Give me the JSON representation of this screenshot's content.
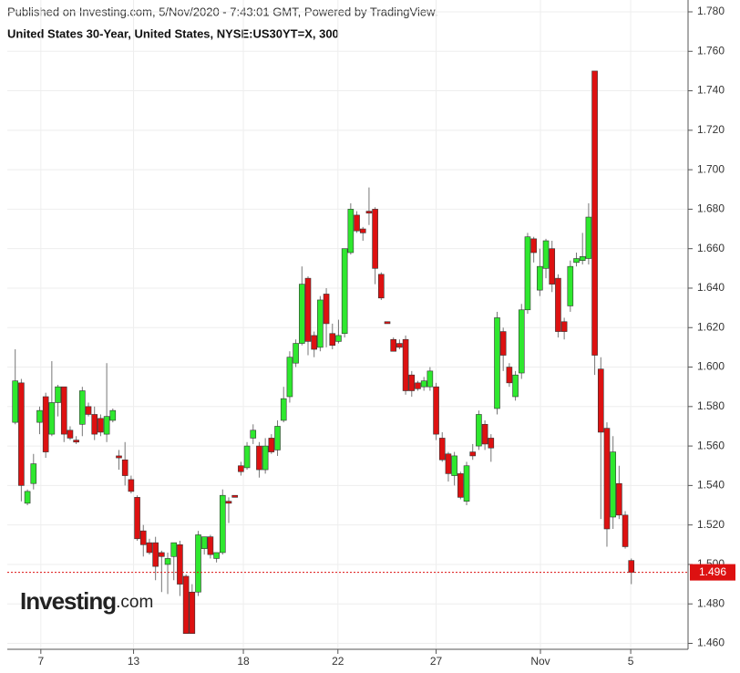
{
  "chart_data": {
    "type": "candlestick",
    "published": "Published on Investing.com, 5/Nov/2020 - 7:43:01 GMT, Powered by TradingView.",
    "title": "United States 30-Year, United States, NYSE:US30YT=X, 300",
    "logo": {
      "brand": "Investing",
      "suffix": ".com"
    },
    "up_color": "#2ee82e",
    "down_color": "#dd1111",
    "wick_color": "#777777",
    "border_color": "#333333",
    "grid": true,
    "last_price": 1.496,
    "last_price_color": "#dd1111",
    "ylim": [
      1.457,
      1.786
    ],
    "yticks": [
      {
        "value": 1.46,
        "label": "1.460"
      },
      {
        "value": 1.48,
        "label": "1.480"
      },
      {
        "value": 1.5,
        "label": "1.500"
      },
      {
        "value": 1.52,
        "label": "1.520"
      },
      {
        "value": 1.54,
        "label": "1.540"
      },
      {
        "value": 1.56,
        "label": "1.560"
      },
      {
        "value": 1.58,
        "label": "1.580"
      },
      {
        "value": 1.6,
        "label": "1.600"
      },
      {
        "value": 1.62,
        "label": "1.620"
      },
      {
        "value": 1.64,
        "label": "1.640"
      },
      {
        "value": 1.66,
        "label": "1.660"
      },
      {
        "value": 1.68,
        "label": "1.680"
      },
      {
        "value": 1.7,
        "label": "1.700"
      },
      {
        "value": 1.72,
        "label": "1.720"
      },
      {
        "value": 1.74,
        "label": "1.740"
      },
      {
        "value": 1.76,
        "label": "1.760"
      },
      {
        "value": 1.78,
        "label": "1.780"
      }
    ],
    "xlim": [
      -1.3,
      110.3
    ],
    "xticks": [
      {
        "value": 4.2,
        "label": "7"
      },
      {
        "value": 19.4,
        "label": "13"
      },
      {
        "value": 37.4,
        "label": "18"
      },
      {
        "value": 52.9,
        "label": "22"
      },
      {
        "value": 69.0,
        "label": "27"
      },
      {
        "value": 86.1,
        "label": "Nov"
      },
      {
        "value": 100.9,
        "label": "5"
      }
    ],
    "open": [
      1.572,
      1.592,
      1.531,
      1.541,
      1.572,
      1.585,
      1.566,
      1.582,
      1.59,
      1.568,
      1.563,
      1.571,
      1.58,
      1.576,
      1.574,
      1.566,
      1.573,
      1.555,
      1.553,
      1.543,
      1.534,
      1.517,
      1.511,
      1.511,
      1.506,
      1.5,
      1.504,
      1.51,
      1.494,
      1.486,
      1.486,
      1.508,
      1.514,
      1.503,
      1.506,
      1.532,
      1.535,
      1.55,
      1.549,
      1.564,
      1.56,
      1.548,
      1.564,
      1.558,
      1.573,
      1.585,
      1.602,
      1.612,
      1.645,
      1.616,
      1.61,
      1.637,
      1.617,
      1.613,
      1.617,
      1.658,
      1.677,
      1.67,
      1.679,
      1.68,
      1.647,
      1.623,
      1.614,
      1.612,
      1.614,
      1.596,
      1.592,
      1.59,
      1.59,
      1.59,
      1.564,
      1.556,
      1.545,
      1.546,
      1.532,
      1.557,
      1.56,
      1.571,
      1.564,
      1.579,
      1.618,
      1.6,
      1.585,
      1.597,
      1.629,
      1.665,
      1.639,
      1.65,
      1.66,
      1.645,
      1.623,
      1.631,
      1.653,
      1.654,
      1.655,
      1.75,
      1.599,
      1.569,
      1.524,
      1.541,
      1.525,
      1.502
    ],
    "high": [
      1.609,
      1.594,
      1.538,
      1.556,
      1.58,
      1.587,
      1.603,
      1.591,
      1.59,
      1.57,
      1.565,
      1.59,
      1.582,
      1.58,
      1.576,
      1.602,
      1.579,
      1.558,
      1.562,
      1.545,
      1.535,
      1.52,
      1.513,
      1.514,
      1.507,
      1.506,
      1.511,
      1.512,
      1.495,
      1.49,
      1.517,
      1.514,
      1.515,
      1.506,
      1.538,
      1.534,
      1.535,
      1.552,
      1.562,
      1.571,
      1.562,
      1.564,
      1.566,
      1.573,
      1.59,
      1.608,
      1.614,
      1.651,
      1.646,
      1.618,
      1.636,
      1.64,
      1.622,
      1.624,
      1.66,
      1.683,
      1.679,
      1.671,
      1.691,
      1.681,
      1.648,
      1.623,
      1.615,
      1.614,
      1.616,
      1.598,
      1.593,
      1.595,
      1.6,
      1.592,
      1.567,
      1.557,
      1.557,
      1.547,
      1.552,
      1.561,
      1.578,
      1.573,
      1.566,
      1.628,
      1.62,
      1.602,
      1.598,
      1.632,
      1.668,
      1.666,
      1.66,
      1.665,
      1.664,
      1.647,
      1.625,
      1.654,
      1.658,
      1.668,
      1.683,
      1.75,
      1.605,
      1.572,
      1.565,
      1.55,
      1.527,
      1.503
    ],
    "low": [
      1.571,
      1.532,
      1.53,
      1.538,
      1.566,
      1.554,
      1.565,
      1.575,
      1.562,
      1.563,
      1.561,
      1.565,
      1.575,
      1.563,
      1.565,
      1.562,
      1.572,
      1.548,
      1.54,
      1.536,
      1.512,
      1.504,
      1.505,
      1.492,
      1.486,
      1.485,
      1.492,
      1.484,
      1.465,
      1.465,
      1.484,
      1.505,
      1.503,
      1.501,
      1.505,
      1.521,
      1.534,
      1.545,
      1.548,
      1.561,
      1.544,
      1.546,
      1.556,
      1.555,
      1.572,
      1.582,
      1.6,
      1.611,
      1.606,
      1.605,
      1.608,
      1.61,
      1.609,
      1.612,
      1.615,
      1.657,
      1.668,
      1.664,
      1.672,
      1.642,
      1.634,
      1.622,
      1.608,
      1.609,
      1.586,
      1.585,
      1.588,
      1.588,
      1.588,
      1.563,
      1.552,
      1.542,
      1.54,
      1.533,
      1.53,
      1.553,
      1.558,
      1.558,
      1.552,
      1.576,
      1.598,
      1.59,
      1.583,
      1.594,
      1.627,
      1.653,
      1.636,
      1.645,
      1.638,
      1.615,
      1.614,
      1.628,
      1.651,
      1.652,
      1.652,
      1.596,
      1.523,
      1.509,
      1.518,
      1.523,
      1.508,
      1.49
    ],
    "close": [
      1.593,
      1.54,
      1.537,
      1.551,
      1.578,
      1.557,
      1.582,
      1.59,
      1.566,
      1.564,
      1.562,
      1.588,
      1.576,
      1.566,
      1.567,
      1.575,
      1.578,
      1.554,
      1.545,
      1.537,
      1.513,
      1.51,
      1.506,
      1.499,
      1.504,
      1.503,
      1.511,
      1.49,
      1.465,
      1.465,
      1.515,
      1.514,
      1.505,
      1.506,
      1.535,
      1.531,
      1.534,
      1.547,
      1.56,
      1.568,
      1.548,
      1.56,
      1.557,
      1.57,
      1.584,
      1.605,
      1.612,
      1.642,
      1.613,
      1.609,
      1.634,
      1.622,
      1.611,
      1.616,
      1.66,
      1.68,
      1.669,
      1.668,
      1.678,
      1.65,
      1.635,
      1.622,
      1.608,
      1.61,
      1.588,
      1.588,
      1.589,
      1.593,
      1.598,
      1.566,
      1.553,
      1.546,
      1.555,
      1.534,
      1.55,
      1.555,
      1.576,
      1.561,
      1.559,
      1.625,
      1.606,
      1.592,
      1.596,
      1.629,
      1.666,
      1.658,
      1.651,
      1.664,
      1.642,
      1.618,
      1.618,
      1.651,
      1.655,
      1.656,
      1.676,
      1.606,
      1.567,
      1.518,
      1.557,
      1.525,
      1.509,
      1.496
    ]
  }
}
